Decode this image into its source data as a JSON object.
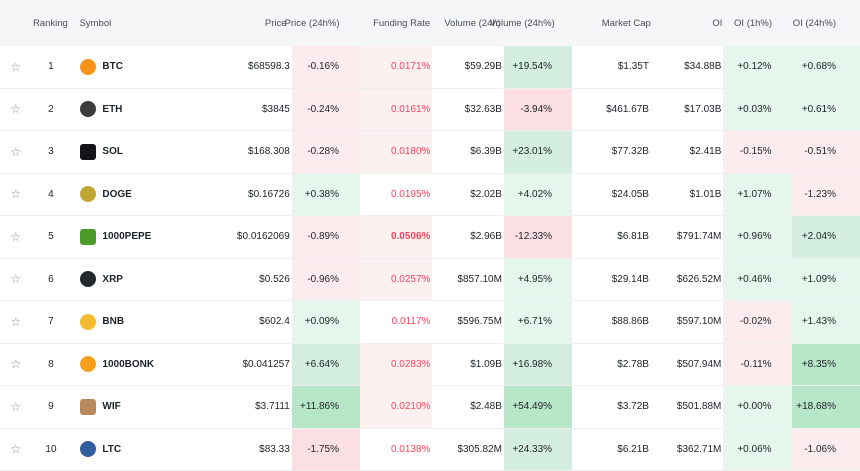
{
  "headers": {
    "ranking": "Ranking",
    "symbol": "Symbol",
    "price": "Price",
    "price_24h": "Price (24h%)",
    "funding": "Funding Rate",
    "volume": "Volume (24h)",
    "volume_24h": "Volume (24h%)",
    "mcap": "Market Cap",
    "oi": "OI",
    "oi_1h": "OI (1h%)",
    "oi_24h": "OI (24h%)"
  },
  "star_glyph": "☆",
  "rows": [
    {
      "rank": "1",
      "symbol": "BTC",
      "icon": "bitcoin-icon",
      "icon_color": "#f7931a",
      "price": "$68598.3",
      "price_24h": "-0.16%",
      "funding": "0.0171%",
      "volume": "$59.29B",
      "volume_24h": "+19.54%",
      "mcap": "$1.35T",
      "oi": "$34.88B",
      "oi_1h": "+0.12%",
      "oi_24h": "+0.68%"
    },
    {
      "rank": "2",
      "symbol": "ETH",
      "icon": "ethereum-icon",
      "icon_color": "#3c3c3d",
      "price": "$3845",
      "price_24h": "-0.24%",
      "funding": "0.0161%",
      "volume": "$32.63B",
      "volume_24h": "-3.94%",
      "mcap": "$461.67B",
      "oi": "$17.03B",
      "oi_1h": "+0.03%",
      "oi_24h": "+0.61%"
    },
    {
      "rank": "3",
      "symbol": "SOL",
      "icon": "solana-icon",
      "icon_color": "#14151a",
      "price": "$168.308",
      "price_24h": "-0.28%",
      "funding": "0.0180%",
      "volume": "$6.39B",
      "volume_24h": "+23.01%",
      "mcap": "$77.32B",
      "oi": "$2.41B",
      "oi_1h": "-0.15%",
      "oi_24h": "-0.51%"
    },
    {
      "rank": "4",
      "symbol": "DOGE",
      "icon": "dogecoin-icon",
      "icon_color": "#c2a633",
      "price": "$0.16726",
      "price_24h": "+0.38%",
      "funding": "0.0195%",
      "volume": "$2.02B",
      "volume_24h": "+4.02%",
      "mcap": "$24.05B",
      "oi": "$1.01B",
      "oi_1h": "+1.07%",
      "oi_24h": "-1.23%"
    },
    {
      "rank": "5",
      "symbol": "1000PEPE",
      "icon": "pepe-icon",
      "icon_color": "#4c9a2a",
      "price": "$0.0162069",
      "price_24h": "-0.89%",
      "funding": "0.0506%",
      "volume": "$2.96B",
      "volume_24h": "-12.33%",
      "mcap": "$6.81B",
      "oi": "$791.74M",
      "oi_1h": "+0.96%",
      "oi_24h": "+2.04%"
    },
    {
      "rank": "6",
      "symbol": "XRP",
      "icon": "xrp-icon",
      "icon_color": "#23292f",
      "price": "$0.526",
      "price_24h": "-0.96%",
      "funding": "0.0257%",
      "volume": "$857.10M",
      "volume_24h": "+4.95%",
      "mcap": "$29.14B",
      "oi": "$626.52M",
      "oi_1h": "+0.46%",
      "oi_24h": "+1.09%"
    },
    {
      "rank": "7",
      "symbol": "BNB",
      "icon": "bnb-icon",
      "icon_color": "#f3ba2f",
      "price": "$602.4",
      "price_24h": "+0.09%",
      "funding": "0.0117%",
      "volume": "$596.75M",
      "volume_24h": "+6.71%",
      "mcap": "$88.86B",
      "oi": "$597.10M",
      "oi_1h": "-0.02%",
      "oi_24h": "+1.43%"
    },
    {
      "rank": "8",
      "symbol": "1000BONK",
      "icon": "bonk-icon",
      "icon_color": "#f8a01c",
      "price": "$0.041257",
      "price_24h": "+6.64%",
      "funding": "0.0283%",
      "volume": "$1.09B",
      "volume_24h": "+16.98%",
      "mcap": "$2.78B",
      "oi": "$507.94M",
      "oi_1h": "-0.11%",
      "oi_24h": "+8.35%"
    },
    {
      "rank": "9",
      "symbol": "WIF",
      "icon": "dogwifhat-icon",
      "icon_color": "#b88a5b",
      "price": "$3.7111",
      "price_24h": "+11.86%",
      "funding": "0.0210%",
      "volume": "$2.48B",
      "volume_24h": "+54.49%",
      "mcap": "$3.72B",
      "oi": "$501.88M",
      "oi_1h": "+0.00%",
      "oi_24h": "+18.68%"
    },
    {
      "rank": "10",
      "symbol": "LTC",
      "icon": "litecoin-icon",
      "icon_color": "#345d9d",
      "price": "$83.33",
      "price_24h": "-1.75%",
      "funding": "0.0138%",
      "volume": "$305.82M",
      "volume_24h": "+24.33%",
      "mcap": "$6.21B",
      "oi": "$362.71M",
      "oi_1h": "+0.06%",
      "oi_24h": "-1.06%"
    }
  ]
}
